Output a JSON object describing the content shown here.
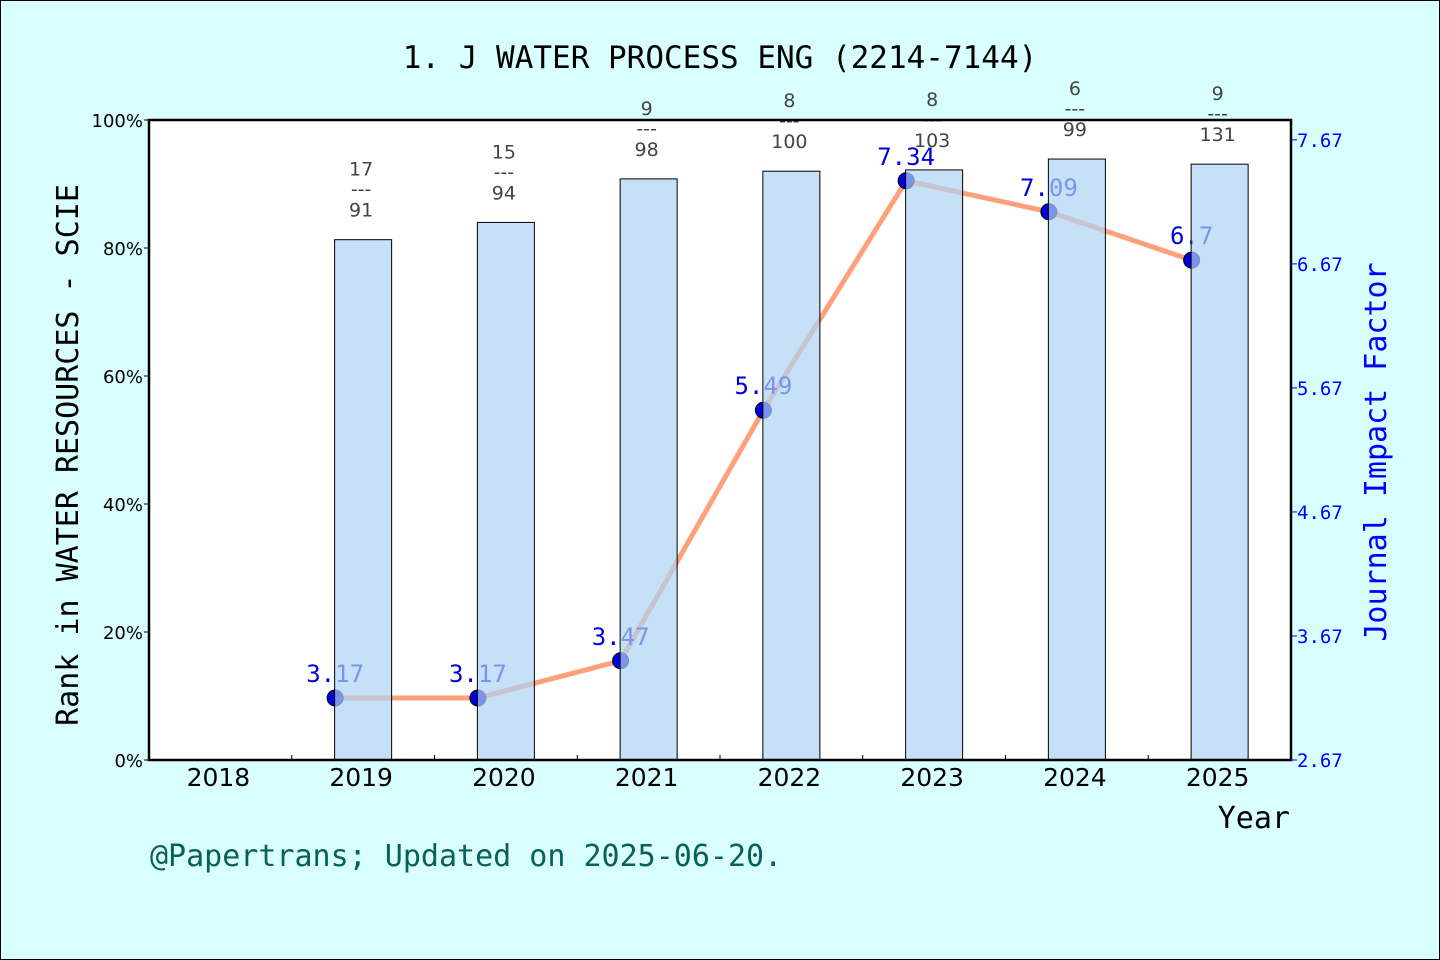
{
  "chart_data": {
    "type": "bar+line",
    "title": "1. J WATER PROCESS ENG (2214-7144)",
    "xlabel": "Year",
    "ylabel_left": "Rank in WATER RESOURCES - SCIE",
    "ylabel_right": "Journal Impact Factor",
    "categories": [
      "2018",
      "2019",
      "2020",
      "2021",
      "2022",
      "2023",
      "2024",
      "2025"
    ],
    "left_axis": {
      "ylim": [
        0,
        100
      ],
      "ticks": [
        "0%",
        "20%",
        "40%",
        "60%",
        "80%",
        "100%"
      ]
    },
    "right_axis": {
      "ylim": [
        2.67,
        7.83
      ],
      "ticks": [
        "2.67",
        "3.67",
        "4.67",
        "5.67",
        "6.67",
        "7.67"
      ]
    },
    "rank": [
      null,
      {
        "rank": "17",
        "total": "91"
      },
      {
        "rank": "15",
        "total": "94"
      },
      {
        "rank": "9",
        "total": "98"
      },
      {
        "rank": "8",
        "total": "100"
      },
      {
        "rank": "8",
        "total": "103"
      },
      {
        "rank": "6",
        "total": "99"
      },
      {
        "rank": "9",
        "total": "131"
      }
    ],
    "bar_values_percent": [
      null,
      81.3,
      84.0,
      90.8,
      92.0,
      92.2,
      93.9,
      93.1
    ],
    "impact_factor": [
      null,
      3.17,
      3.17,
      3.47,
      5.49,
      7.34,
      7.09,
      6.7
    ],
    "impact_factor_labels": [
      null,
      "3.17",
      "3.17",
      "3.47",
      "5.49",
      "7.34",
      "7.09",
      "6.7"
    ],
    "rank_separator": "---",
    "grid": false,
    "legend": "none",
    "colors": {
      "bar": "#C6E0F7",
      "line": "#FFA07A",
      "point": "#0000DD",
      "right_axis": "#0000FF",
      "background": "#D8FEFE",
      "footer": "#0A5F5A"
    }
  },
  "footer": "@Papertrans; Updated on 2025-06-20."
}
